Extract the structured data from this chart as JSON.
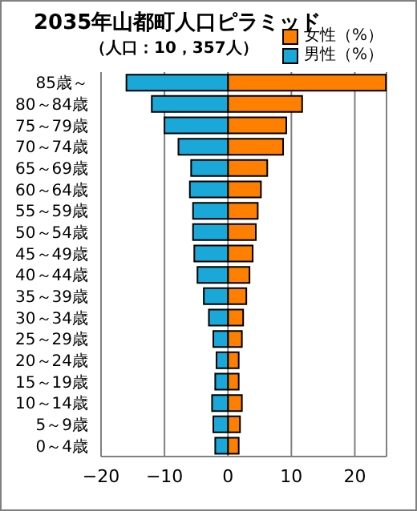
{
  "chart_data": {
    "type": "bar",
    "orientation": "horizontal",
    "stacked": true,
    "title": "2035年山都町人口ピラミッド",
    "subtitle": "（人口：10，357人）",
    "categories": [
      "85歳～",
      "80～84歳",
      "75～79歳",
      "70～74歳",
      "65～69歳",
      "60～64歳",
      "55～59歳",
      "50～54歳",
      "45～49歳",
      "40～44歳",
      "35～39歳",
      "30～34歳",
      "25～29歳",
      "20～24歳",
      "15～19歳",
      "10～14歳",
      "5～9歳",
      "0～4歳"
    ],
    "series": [
      {
        "name": "女性（%）",
        "color": "#ff8000",
        "values": [
          24.9,
          11.7,
          9.2,
          8.7,
          6.2,
          5.2,
          4.7,
          4.4,
          3.9,
          3.4,
          2.9,
          2.4,
          2.2,
          1.7,
          1.7,
          2.2,
          1.9,
          1.7
        ]
      },
      {
        "name": "男性（%）",
        "color": "#1aa8d8",
        "values": [
          -16.0,
          -12.0,
          -10.0,
          -7.8,
          -5.8,
          -6.0,
          -5.5,
          -5.5,
          -5.3,
          -4.8,
          -3.8,
          -3.0,
          -2.3,
          -1.8,
          -2.0,
          -2.5,
          -2.3,
          -2.0
        ]
      }
    ],
    "xlim": [
      -20,
      25
    ],
    "xticks": [
      -20,
      -10,
      0,
      10,
      20
    ],
    "grid": "x",
    "legend": "top right"
  }
}
